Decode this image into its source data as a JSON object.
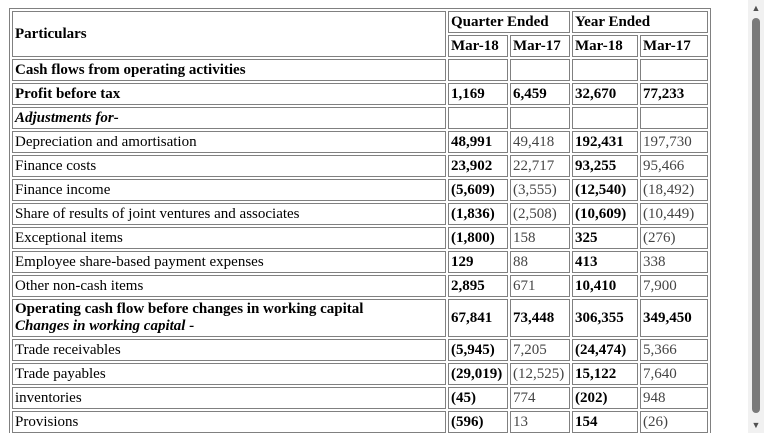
{
  "header": {
    "particulars": "Particulars",
    "quarter_ended": "Quarter Ended",
    "year_ended": "Year Ended",
    "columns": [
      "Mar-18",
      "Mar-17",
      "Mar-18",
      "Mar-17"
    ]
  },
  "rows": [
    {
      "label": "Cash flows from operating activities",
      "values": [
        "",
        "",
        "",
        ""
      ]
    },
    {
      "label": "Profit before tax",
      "values": [
        "1,169",
        "6,459",
        "32,670",
        "77,233"
      ]
    },
    {
      "label": "Adjustments for-",
      "values": [
        "",
        "",
        "",
        ""
      ]
    },
    {
      "label": "Depreciation and amortisation",
      "values": [
        "48,991",
        "49,418",
        "192,431",
        "197,730"
      ]
    },
    {
      "label": "Finance costs",
      "values": [
        "23,902",
        "22,717",
        "93,255",
        "95,466"
      ]
    },
    {
      "label": "Finance income",
      "values": [
        "(5,609)",
        "(3,555)",
        "(12,540)",
        "(18,492)"
      ]
    },
    {
      "label": "Share of results of joint ventures and associates",
      "values": [
        "(1,836)",
        "(2,508)",
        "(10,609)",
        "(10,449)"
      ]
    },
    {
      "label": "Exceptional items",
      "values": [
        "(1,800)",
        "158",
        "325",
        "(276)"
      ]
    },
    {
      "label": "Employee share-based payment expenses",
      "values": [
        "129",
        "88",
        "413",
        "338"
      ]
    },
    {
      "label": "Other non-cash items",
      "values": [
        "2,895",
        "671",
        "10,410",
        "7,900"
      ]
    },
    {
      "label": "Operating cash flow before changes in working capital",
      "sublabel": "Changes in working capital -",
      "values": [
        "67,841",
        "73,448",
        "306,355",
        "349,450"
      ]
    },
    {
      "label": "Trade receivables",
      "values": [
        "(5,945)",
        "7,205",
        "(24,474)",
        "5,366"
      ]
    },
    {
      "label": "Trade payables",
      "values": [
        "(29,019)",
        "(12,525)",
        "15,122",
        "7,640"
      ]
    },
    {
      "label": "inventories",
      "values": [
        "(45)",
        "774",
        "(202)",
        "948"
      ]
    },
    {
      "label": "Provisions",
      "values": [
        "(596)",
        "13",
        "154",
        "(26)"
      ]
    }
  ],
  "scrollbar": {
    "up_icon": "scroll-up-arrow-icon",
    "down_icon": "scroll-down-arrow-icon"
  }
}
